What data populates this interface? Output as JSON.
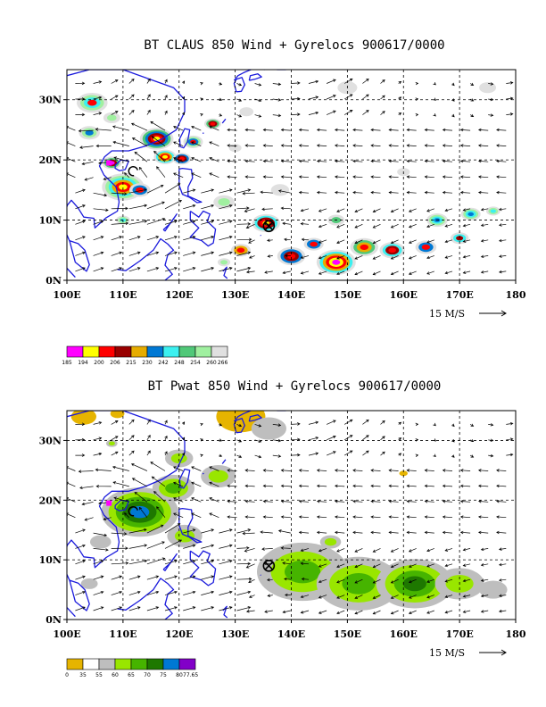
{
  "panels": [
    {
      "id": "claus",
      "title": "BT CLAUS 850 Wind + Gyrelocs 900617/0000",
      "x_ticks": [
        "100E",
        "110E",
        "120E",
        "130E",
        "140E",
        "150E",
        "160E",
        "170E",
        "180"
      ],
      "y_ticks": [
        "30N",
        "20N",
        "10N",
        "0N"
      ],
      "scale_label": "15 M/S",
      "legend": {
        "labels": [
          "185",
          "194",
          "200",
          "206",
          "215",
          "230",
          "242",
          "248",
          "254",
          "260",
          "266"
        ],
        "colors": [
          "#ff00ff",
          "#ffff00",
          "#ff0000",
          "#990000",
          "#e6ac00",
          "#0078d4",
          "#3cf0f0",
          "#50c878",
          "#a0f0a0",
          "#e0e0e0"
        ]
      },
      "gyre_marker": {
        "lon": 136,
        "lat": 9
      },
      "storm_center": {
        "lon": 111,
        "lat": 18
      }
    },
    {
      "id": "pwat",
      "title": "BT Pwat 850 Wind + Gyrelocs 900617/0000",
      "x_ticks": [
        "100E",
        "110E",
        "120E",
        "130E",
        "140E",
        "150E",
        "160E",
        "170E",
        "180"
      ],
      "y_ticks": [
        "30N",
        "20N",
        "10N",
        "0N"
      ],
      "scale_label": "15 M/S",
      "legend": {
        "labels": [
          "0",
          "35",
          "55",
          "60",
          "65",
          "70",
          "75",
          "80",
          "77.65"
        ],
        "colors": [
          "#e6b400",
          "#ffffff",
          "#bebebe",
          "#99e600",
          "#46b400",
          "#1e7800",
          "#0078d4",
          "#8200c8"
        ]
      },
      "gyre_marker": {
        "lon": 136,
        "lat": 9
      },
      "storm_center": {
        "lon": 111,
        "lat": 18
      }
    }
  ]
}
